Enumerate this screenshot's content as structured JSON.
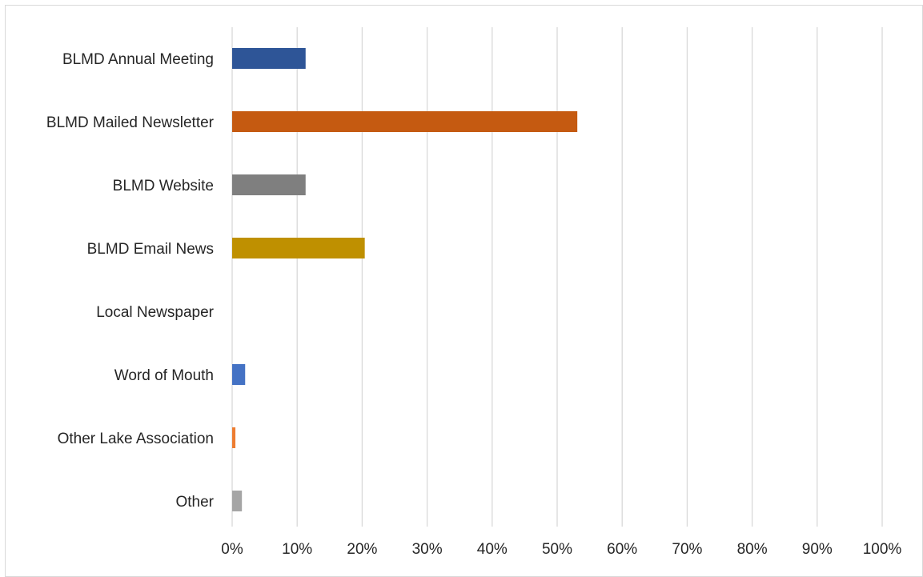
{
  "chart_data": {
    "type": "bar",
    "orientation": "horizontal",
    "categories": [
      "BLMD Annual Meeting",
      "BLMD Mailed Newsletter",
      "BLMD Website",
      "BLMD Email News",
      "Local Newspaper",
      "Word of Mouth",
      "Other Lake Association",
      "Other"
    ],
    "values": [
      11.3,
      53.1,
      11.3,
      20.4,
      0,
      2.0,
      0.5,
      1.5
    ],
    "colors": [
      "#2e5597",
      "#c55a11",
      "#7f7f7f",
      "#bf9000",
      "#ffffff",
      "#4472c4",
      "#ed7d31",
      "#a5a5a5"
    ],
    "xlim": [
      0,
      100
    ],
    "x_ticks": [
      "0%",
      "10%",
      "20%",
      "30%",
      "40%",
      "50%",
      "60%",
      "70%",
      "80%",
      "90%",
      "100%"
    ],
    "title": "",
    "xlabel": "",
    "ylabel": "",
    "grid": "vertical",
    "legend": "none"
  }
}
